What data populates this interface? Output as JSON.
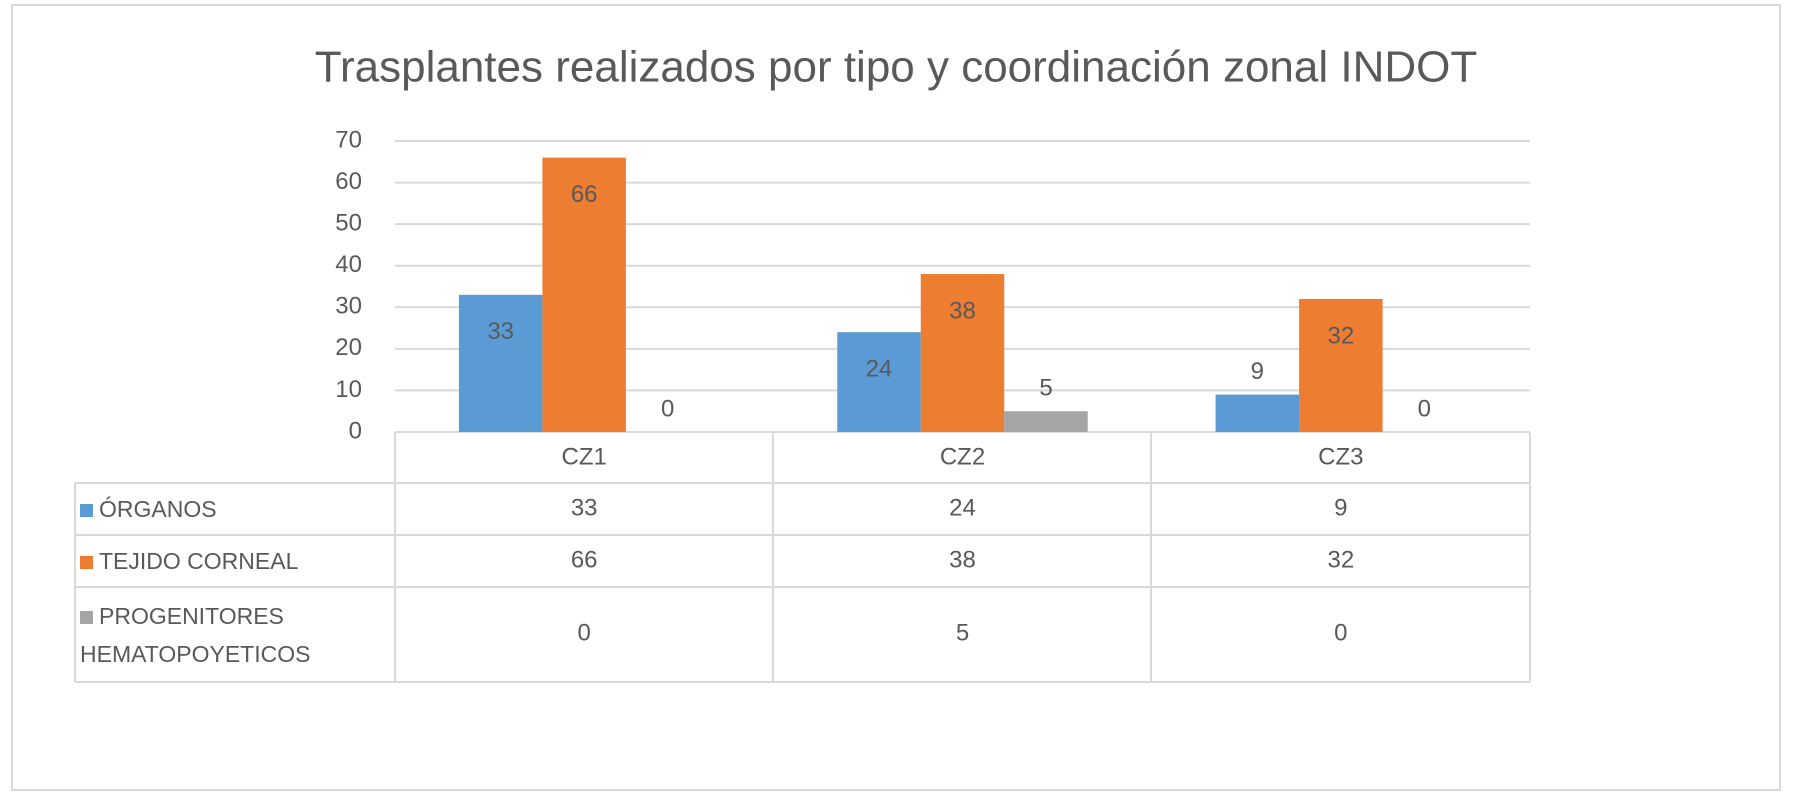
{
  "chart_data": {
    "type": "bar",
    "title": "Trasplantes realizados por tipo y coordinación zonal INDOT",
    "categories": [
      "CZ1",
      "CZ2",
      "CZ3"
    ],
    "series": [
      {
        "name": "ÓRGANOS",
        "color": "#5b9bd5",
        "values": [
          33,
          24,
          9
        ]
      },
      {
        "name": "TEJIDO CORNEAL",
        "color": "#ed7d31",
        "values": [
          66,
          38,
          32
        ]
      },
      {
        "name": "PROGENITORES HEMATOPOYETICOS",
        "color": "#a5a5a5",
        "values": [
          0,
          5,
          0
        ]
      }
    ],
    "ylim": [
      0,
      70
    ],
    "yticks": [
      0,
      10,
      20,
      30,
      40,
      50,
      60,
      70
    ],
    "grid": true,
    "legend": "data-table"
  }
}
